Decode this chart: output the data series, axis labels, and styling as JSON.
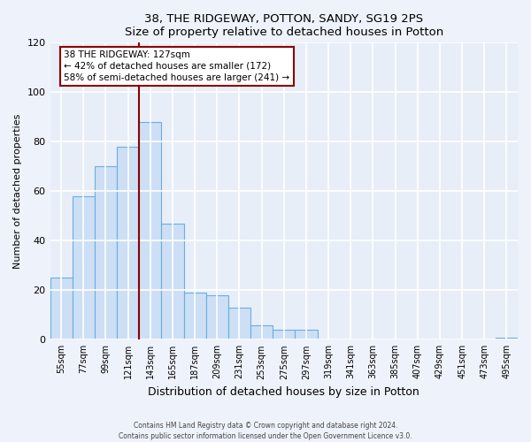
{
  "title": "38, THE RIDGEWAY, POTTON, SANDY, SG19 2PS",
  "subtitle": "Size of property relative to detached houses in Potton",
  "xlabel": "Distribution of detached houses by size in Potton",
  "ylabel": "Number of detached properties",
  "bar_color": "#ccdff5",
  "bar_edge_color": "#6aaee0",
  "background_color": "#e8eef8",
  "fig_background": "#eef2fa",
  "categories": [
    "55sqm",
    "77sqm",
    "99sqm",
    "121sqm",
    "143sqm",
    "165sqm",
    "187sqm",
    "209sqm",
    "231sqm",
    "253sqm",
    "275sqm",
    "297sqm",
    "319sqm",
    "341sqm",
    "363sqm",
    "385sqm",
    "407sqm",
    "429sqm",
    "451sqm",
    "473sqm",
    "495sqm"
  ],
  "values": [
    25,
    58,
    70,
    78,
    88,
    47,
    19,
    18,
    13,
    6,
    4,
    4,
    0,
    0,
    0,
    0,
    0,
    0,
    0,
    0,
    1
  ],
  "ylim": [
    0,
    120
  ],
  "yticks": [
    0,
    20,
    40,
    60,
    80,
    100,
    120
  ],
  "property_label": "38 THE RIDGEWAY: 127sqm",
  "annotation_line1": "← 42% of detached houses are smaller (172)",
  "annotation_line2": "58% of semi-detached houses are larger (241) →",
  "vline_index": 3.5,
  "footer_line1": "Contains HM Land Registry data © Crown copyright and database right 2024.",
  "footer_line2": "Contains public sector information licensed under the Open Government Licence v3.0."
}
